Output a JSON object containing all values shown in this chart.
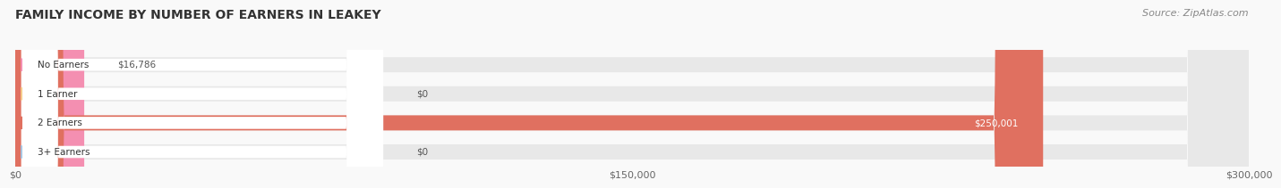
{
  "title": "FAMILY INCOME BY NUMBER OF EARNERS IN LEAKEY",
  "source": "Source: ZipAtlas.com",
  "categories": [
    "No Earners",
    "1 Earner",
    "2 Earners",
    "3+ Earners"
  ],
  "values": [
    16786,
    0,
    250001,
    0
  ],
  "bar_colors": [
    "#f48fb1",
    "#f5c98a",
    "#e07060",
    "#a8c4e0"
  ],
  "track_color": "#e8e8e8",
  "bar_labels": [
    "$16,786",
    "$0",
    "$250,001",
    "$0"
  ],
  "xlim": [
    0,
    300000
  ],
  "xticks": [
    0,
    150000,
    300000
  ],
  "xtick_labels": [
    "$0",
    "$150,000",
    "$300,000"
  ],
  "title_fontsize": 10,
  "source_fontsize": 8,
  "bar_height": 0.52,
  "bg_color": "#f9f9f9"
}
